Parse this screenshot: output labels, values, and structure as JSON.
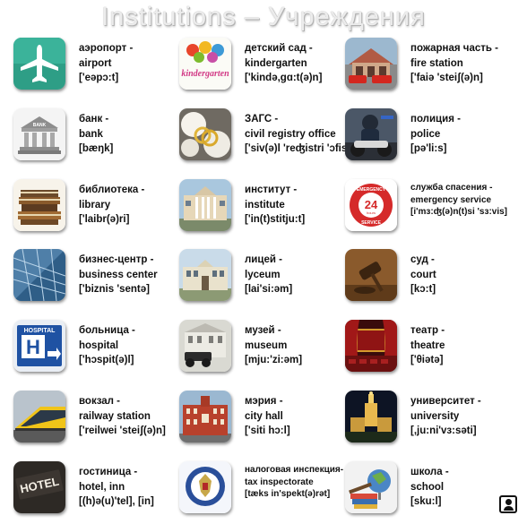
{
  "title": "Institutions – Учреждения",
  "items": [
    {
      "ru": "аэропорт -",
      "en": "airport",
      "tr": "['eəpɔ:t]"
    },
    {
      "ru": "детский сад -",
      "en": "kindergarten",
      "tr": "['kində,gɑ:t(ə)n]",
      "icon_text": "kindergarten"
    },
    {
      "ru": "пожарная часть -",
      "en": "fire station",
      "tr": "['faiə 'steiʃ(ə)n]"
    },
    {
      "ru": "банк -",
      "en": "bank",
      "tr": "[bæŋk]",
      "icon_text": "BANK"
    },
    {
      "ru": "ЗАГС -",
      "en": "civil registry office",
      "tr": "['siv(ə)l 'reʤistri 'ɔfis]"
    },
    {
      "ru": "полиция -",
      "en": "police",
      "tr": "[pə'li:s]"
    },
    {
      "ru": "библиотека -",
      "en": "library",
      "tr": "['laibr(ə)ri]"
    },
    {
      "ru": "институт -",
      "en": "institute",
      "tr": "['in(t)stitju:t]"
    },
    {
      "ru": "служба спасения -",
      "en": "emergency service",
      "tr": "[i'mɜ:ʤ(ə)n(t)si 'sɜ:vis]",
      "icon_text": [
        "EMERGENCY",
        "24",
        "hours",
        "SERVICE"
      ]
    },
    {
      "ru": "бизнес-центр -",
      "en": "business center",
      "tr": "['biznis 'sentə]"
    },
    {
      "ru": "лицей -",
      "en": "lyceum",
      "tr": "[lai'si:əm]"
    },
    {
      "ru": "суд -",
      "en": "court",
      "tr": "[kɔ:t]"
    },
    {
      "ru": "больница -",
      "en": "hospital",
      "tr": "['hɔspit(ə)l]",
      "icon_text": [
        "HOSPITAL",
        "H"
      ]
    },
    {
      "ru": "музей -",
      "en": "museum",
      "tr": "[mju:'zi:əm]"
    },
    {
      "ru": "театр -",
      "en": "theatre",
      "tr": "['θiətə]"
    },
    {
      "ru": "вокзал -",
      "en": "railway station",
      "tr": "['reilwei 'steiʃ(ə)n]"
    },
    {
      "ru": "мэрия -",
      "en": "city hall",
      "tr": "['siti hɔ:l]"
    },
    {
      "ru": "университет -",
      "en": "university",
      "tr": "[,ju:ni'vɜ:səti]"
    },
    {
      "ru": "гостиница -",
      "en": "hotel, inn",
      "tr": "[(h)ə(u)'tel], [in]",
      "icon_text": "HOTEL"
    },
    {
      "ru": "налоговая инспекция-",
      "en": "tax inspectorate",
      "tr": "[tæks in'spekt(ə)rət]"
    },
    {
      "ru": "школа -",
      "en": "school",
      "tr": "[sku:l]"
    }
  ],
  "colors": {
    "airport": "#2e9e86",
    "hospital": "#1f52a3",
    "emergency": "#d52a2a"
  },
  "corner_icon": "user-badge-icon"
}
